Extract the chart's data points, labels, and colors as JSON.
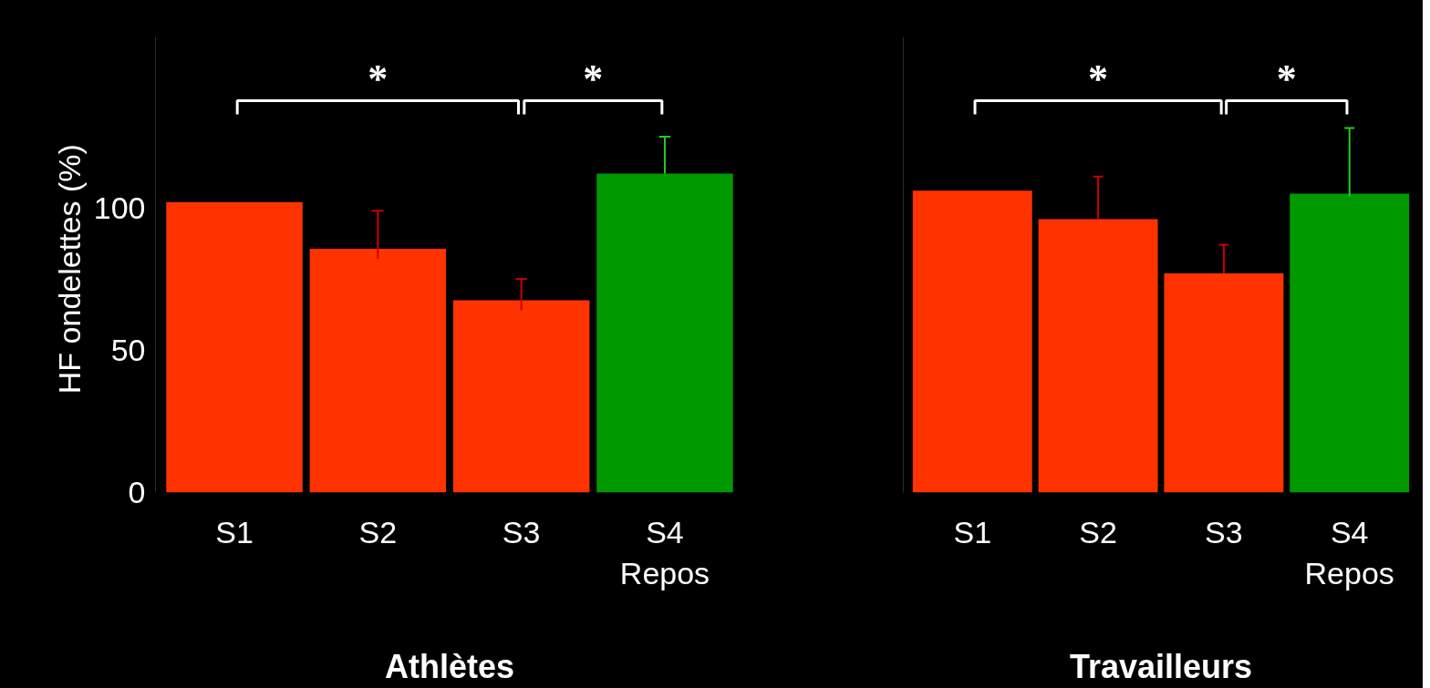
{
  "chart_data": [
    {
      "type": "bar",
      "xlabel": "Athlètes",
      "ylabel": "HF ondelettes  (%)",
      "categories": [
        "S1",
        "S2",
        "S3",
        "S4\nRepos"
      ],
      "values": [
        102,
        85.6,
        67.5,
        112
      ],
      "colors": [
        "#ff3300",
        "#ff3300",
        "#ff3300",
        "#009900"
      ],
      "errors": [
        null,
        [
          82,
          99
        ],
        [
          64,
          75
        ],
        [
          112,
          125
        ]
      ],
      "ylim": [
        0,
        160
      ],
      "yticks": [
        0,
        50,
        100
      ],
      "grid": false,
      "annotations": [
        "*",
        "*"
      ]
    },
    {
      "type": "bar",
      "xlabel": "Travailleurs",
      "categories": [
        "S1",
        "S2",
        "S3",
        "S4\nRepos"
      ],
      "values": [
        106,
        96,
        77,
        105
      ],
      "colors": [
        "#ff3300",
        "#ff3300",
        "#ff3300",
        "#009900"
      ],
      "errors": [
        null,
        [
          96,
          111
        ],
        [
          77,
          87
        ],
        [
          104,
          128
        ]
      ],
      "ylim": [
        0,
        160
      ],
      "yticks": [
        0,
        50,
        100
      ],
      "tick_labels": "x",
      "grid": false,
      "annotations": [
        "*",
        "*"
      ]
    }
  ]
}
